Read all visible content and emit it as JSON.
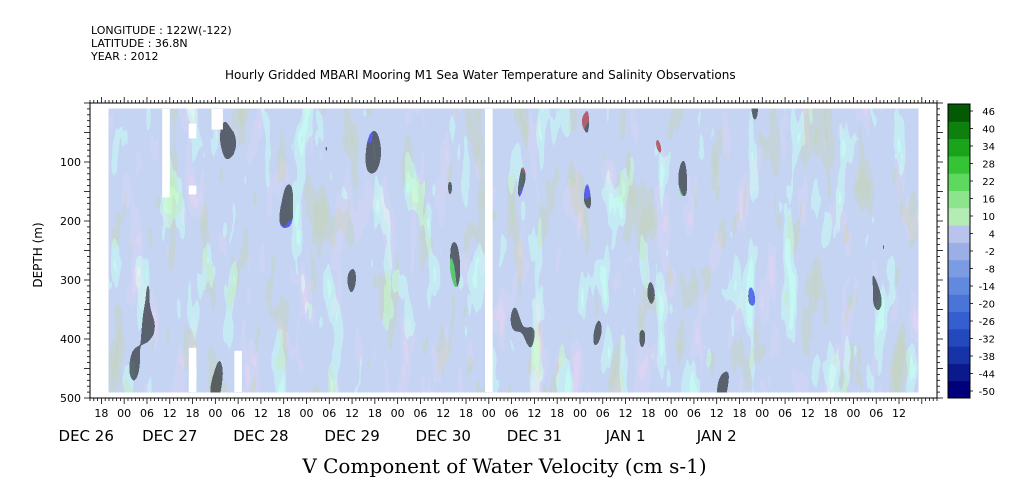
{
  "header": {
    "longitude": "LONGITUDE : 122W(-122)",
    "latitude": "LATITUDE : 36.8N",
    "year": "YEAR : 2012",
    "title": "Hourly Gridded MBARI Mooring M1 Sea Water Temperature and Salinity Observations"
  },
  "chart_data": {
    "type": "heatmap",
    "title": "Hourly Gridded MBARI Mooring M1 Sea Water Temperature and Salinity Observations",
    "xlabel": "V Component of Water Velocity (cm s-1)",
    "ylabel": "DEPTH (m)",
    "y_axis": {
      "inverted": true,
      "ylim": [
        500,
        0
      ],
      "ticks": [
        100,
        200,
        300,
        400,
        500
      ],
      "tick_labels": [
        "100",
        "200",
        "300",
        "400",
        "500"
      ]
    },
    "x_axis": {
      "xlim_hours": [
        -9,
        214
      ],
      "hour_ticks": [
        {
          "h": -6,
          "label": "18"
        },
        {
          "h": 0,
          "label": "00"
        },
        {
          "h": 6,
          "label": "06"
        },
        {
          "h": 12,
          "label": "12"
        },
        {
          "h": 18,
          "label": "18"
        },
        {
          "h": 24,
          "label": "00"
        },
        {
          "h": 30,
          "label": "06"
        },
        {
          "h": 36,
          "label": "12"
        },
        {
          "h": 42,
          "label": "18"
        },
        {
          "h": 48,
          "label": "00"
        },
        {
          "h": 54,
          "label": "06"
        },
        {
          "h": 60,
          "label": "12"
        },
        {
          "h": 66,
          "label": "18"
        },
        {
          "h": 72,
          "label": "00"
        },
        {
          "h": 78,
          "label": "06"
        },
        {
          "h": 84,
          "label": "12"
        },
        {
          "h": 90,
          "label": "18"
        },
        {
          "h": 96,
          "label": "00"
        },
        {
          "h": 102,
          "label": "06"
        },
        {
          "h": 108,
          "label": "12"
        },
        {
          "h": 114,
          "label": "18"
        },
        {
          "h": 120,
          "label": "00"
        },
        {
          "h": 126,
          "label": "06"
        },
        {
          "h": 132,
          "label": "12"
        },
        {
          "h": 138,
          "label": "18"
        },
        {
          "h": 144,
          "label": "00"
        },
        {
          "h": 150,
          "label": "06"
        },
        {
          "h": 156,
          "label": "12"
        },
        {
          "h": 162,
          "label": "18"
        },
        {
          "h": 168,
          "label": "00"
        },
        {
          "h": 174,
          "label": "06"
        },
        {
          "h": 180,
          "label": "12"
        },
        {
          "h": 186,
          "label": "18"
        },
        {
          "h": 192,
          "label": "00"
        },
        {
          "h": 198,
          "label": "06"
        },
        {
          "h": 204,
          "label": "12"
        }
      ],
      "date_labels": [
        {
          "h": -10,
          "label": "DEC 26"
        },
        {
          "h": 12,
          "label": "DEC 27"
        },
        {
          "h": 36,
          "label": "DEC 28"
        },
        {
          "h": 60,
          "label": "DEC 29"
        },
        {
          "h": 84,
          "label": "DEC 30"
        },
        {
          "h": 108,
          "label": "DEC 31"
        },
        {
          "h": 132,
          "label": "JAN  1"
        },
        {
          "h": 156,
          "label": "JAN  2"
        }
      ]
    },
    "data_extent": {
      "hours": [
        -4,
        209
      ],
      "depth_m": [
        10,
        490
      ]
    },
    "gaps": [
      {
        "hours": [
          10,
          12
        ],
        "depth_m": [
          10,
          160
        ]
      },
      {
        "hours": [
          17,
          19
        ],
        "depth_m": [
          35,
          60
        ]
      },
      {
        "hours": [
          17,
          19
        ],
        "depth_m": [
          140,
          155
        ]
      },
      {
        "hours": [
          17,
          19
        ],
        "depth_m": [
          415,
          490
        ]
      },
      {
        "hours": [
          23,
          26
        ],
        "depth_m": [
          10,
          45
        ]
      },
      {
        "hours": [
          29,
          31
        ],
        "depth_m": [
          420,
          490
        ]
      },
      {
        "hours": [
          95,
          97
        ],
        "depth_m": [
          10,
          490
        ]
      }
    ],
    "colorbar": {
      "levels": [
        -50,
        -44,
        -38,
        -32,
        -26,
        -20,
        -14,
        -8,
        -2,
        4,
        10,
        16,
        22,
        28,
        34,
        40,
        46
      ],
      "tick_labels": [
        "46",
        "40",
        "34",
        "28",
        "22",
        "16",
        "10",
        "4",
        "-2",
        "-8",
        "-14",
        "-20",
        "-26",
        "-32",
        "-38",
        "-44",
        "-50"
      ],
      "colors_low_to_high": [
        "#00007a",
        "#0a1a8c",
        "#1733a8",
        "#2449bf",
        "#355fcf",
        "#4a74d8",
        "#6189de",
        "#7b9be3",
        "#9caee6",
        "#b8c4ec",
        "#b5ecb5",
        "#8de48d",
        "#5fd85f",
        "#34c434",
        "#1ba41b",
        "#0d800d",
        "#045a04"
      ]
    },
    "field_note_colors": {
      "background_blue": "#8ea8e6",
      "patch_green": "#90ee90"
    }
  },
  "xaxis_title": "V Component of Water Velocity (cm s-1)",
  "yaxis_title": "DEPTH (m)"
}
